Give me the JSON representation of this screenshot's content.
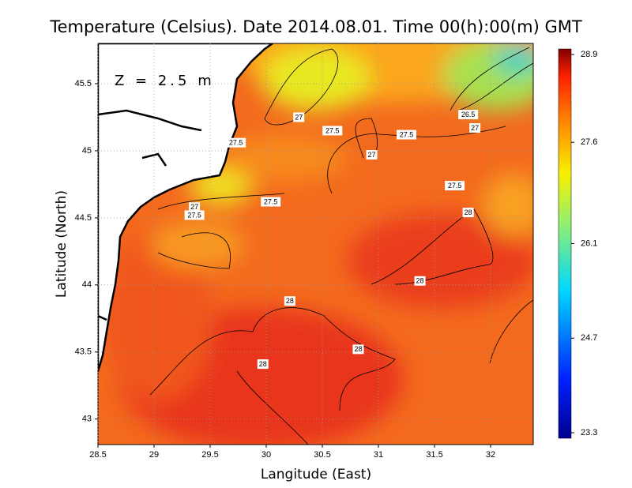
{
  "chart_data": {
    "type": "heatmap",
    "title": "Temperature (Celsius). Date 2014.08.01. Time 00(h):00(m) GMT",
    "x_label": "Langitude (East)",
    "y_label": "Latitude (North)",
    "annotation": "Z = 2.5 m",
    "xlim": [
      28.5,
      32.38
    ],
    "ylim": [
      42.81,
      45.8
    ],
    "xticks": [
      28.5,
      29,
      29.5,
      30,
      30.5,
      31,
      31.5,
      32
    ],
    "yticks": [
      43,
      43.5,
      44,
      44.5,
      45,
      45.5
    ],
    "grid": true,
    "colorbar_lim": [
      23.3,
      28.9
    ],
    "colorbar_ticks": [
      28.9,
      27.6,
      26.1,
      24.7,
      23.3
    ],
    "contour_labels": [
      {
        "value": 26.5,
        "lon": 31.8,
        "lat": 45.27
      },
      {
        "value": 27,
        "lon": 30.29,
        "lat": 45.25
      },
      {
        "value": 27.5,
        "lon": 30.59,
        "lat": 45.15
      },
      {
        "value": 27.5,
        "lon": 31.25,
        "lat": 45.12
      },
      {
        "value": 27,
        "lon": 31.86,
        "lat": 45.17
      },
      {
        "value": 27,
        "lon": 30.94,
        "lat": 44.97
      },
      {
        "value": 27.5,
        "lon": 31.68,
        "lat": 44.74
      },
      {
        "value": 27.5,
        "lon": 29.73,
        "lat": 45.06
      },
      {
        "value": 27.5,
        "lon": 30.04,
        "lat": 44.62
      },
      {
        "value": 27,
        "lon": 29.36,
        "lat": 44.58
      },
      {
        "value": 27.5,
        "lon": 29.36,
        "lat": 44.52
      },
      {
        "value": 28,
        "lon": 31.8,
        "lat": 44.54
      },
      {
        "value": 28,
        "lon": 31.37,
        "lat": 44.03
      },
      {
        "value": 28,
        "lon": 30.21,
        "lat": 43.88
      },
      {
        "value": 28,
        "lon": 30.82,
        "lat": 43.52
      },
      {
        "value": 28,
        "lon": 29.97,
        "lat": 43.41
      }
    ]
  }
}
